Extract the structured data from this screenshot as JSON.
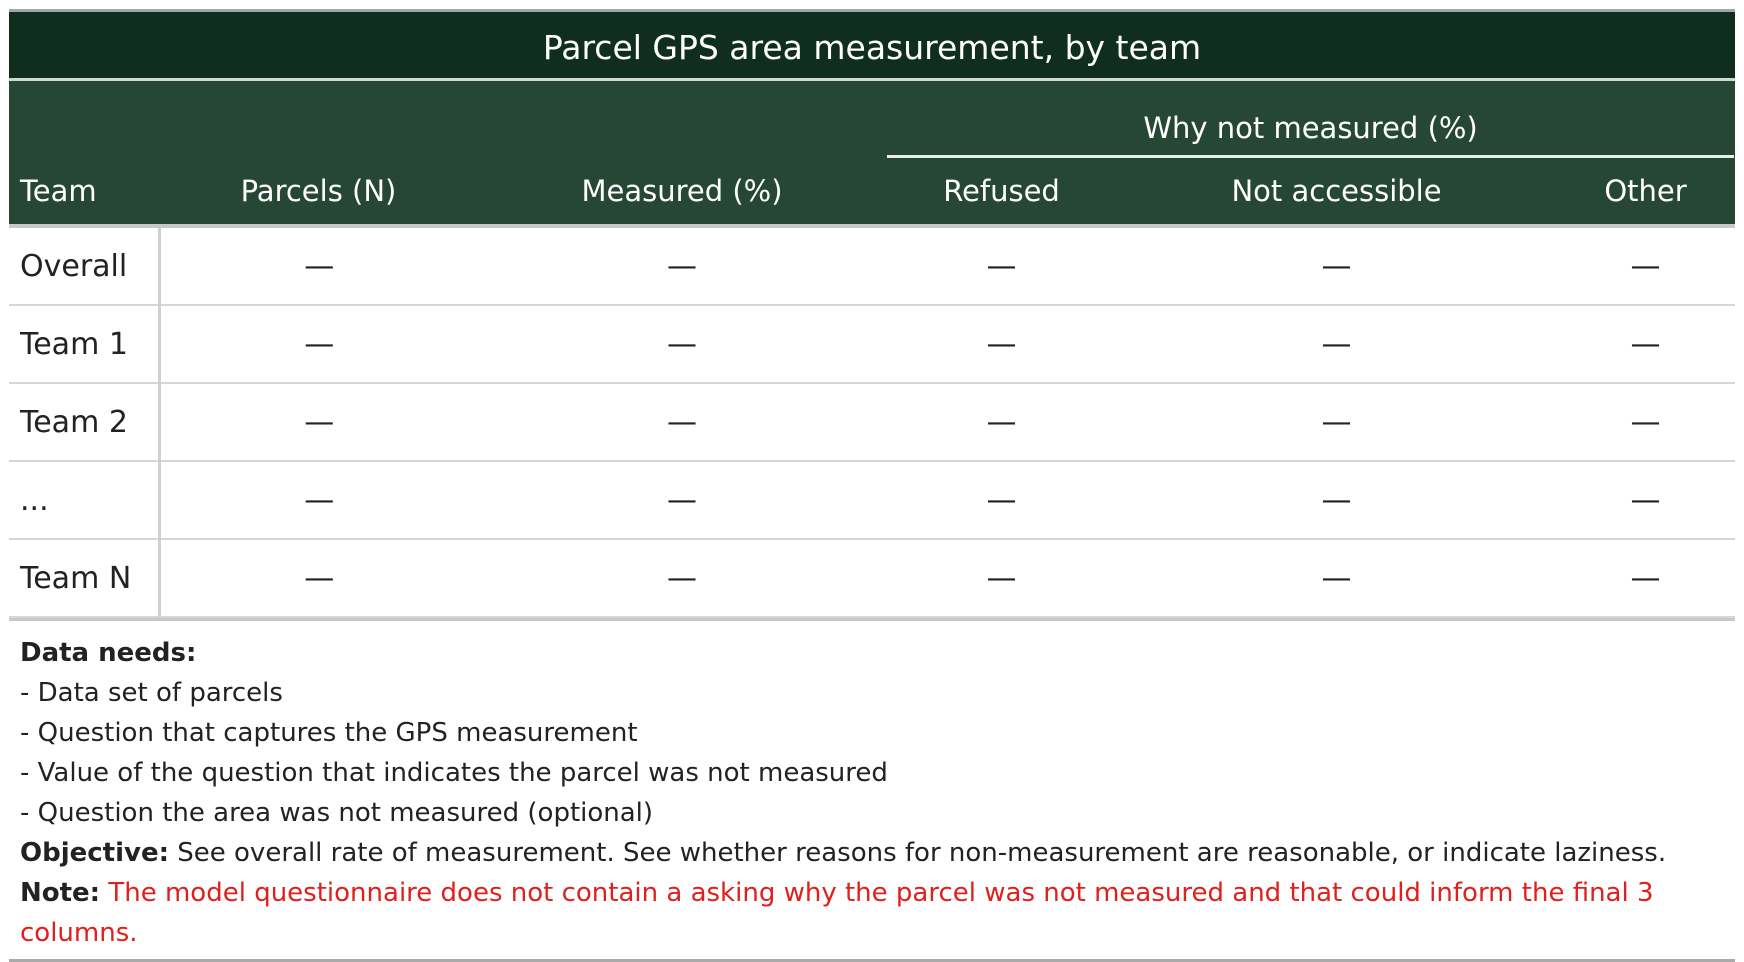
{
  "header": {
    "title": "Parcel GPS area measurement, by team"
  },
  "table": {
    "group_header": "Why not measured (%)",
    "columns": [
      "Team",
      "Parcels (N)",
      "Measured (%)",
      "Refused",
      "Not accessible",
      "Other"
    ],
    "rows": [
      [
        "Overall",
        "—",
        "—",
        "—",
        "—",
        "—"
      ],
      [
        "Team 1",
        "—",
        "—",
        "—",
        "—",
        "—"
      ],
      [
        "Team 2",
        "—",
        "—",
        "—",
        "—",
        "—"
      ],
      [
        "...",
        "—",
        "—",
        "—",
        "—",
        "—"
      ],
      [
        "Team N",
        "—",
        "—",
        "—",
        "—",
        "—"
      ]
    ]
  },
  "notes": {
    "data_needs_label": "Data needs:",
    "data_needs": [
      "- Data set of parcels",
      "- Question that captures the GPS measurement",
      "- Value of the question that indicates the parcel was not measured",
      "- Question the area was not measured (optional)"
    ],
    "objective_label": "Objective:",
    "objective": "See overall rate of measurement. See whether reasons for non-measurement are reasonable, or indicate laziness.",
    "note_label": "Note:",
    "note": "The model questionnaire does not contain a asking why the parcel was not measured and that could inform the final 3 columns."
  }
}
